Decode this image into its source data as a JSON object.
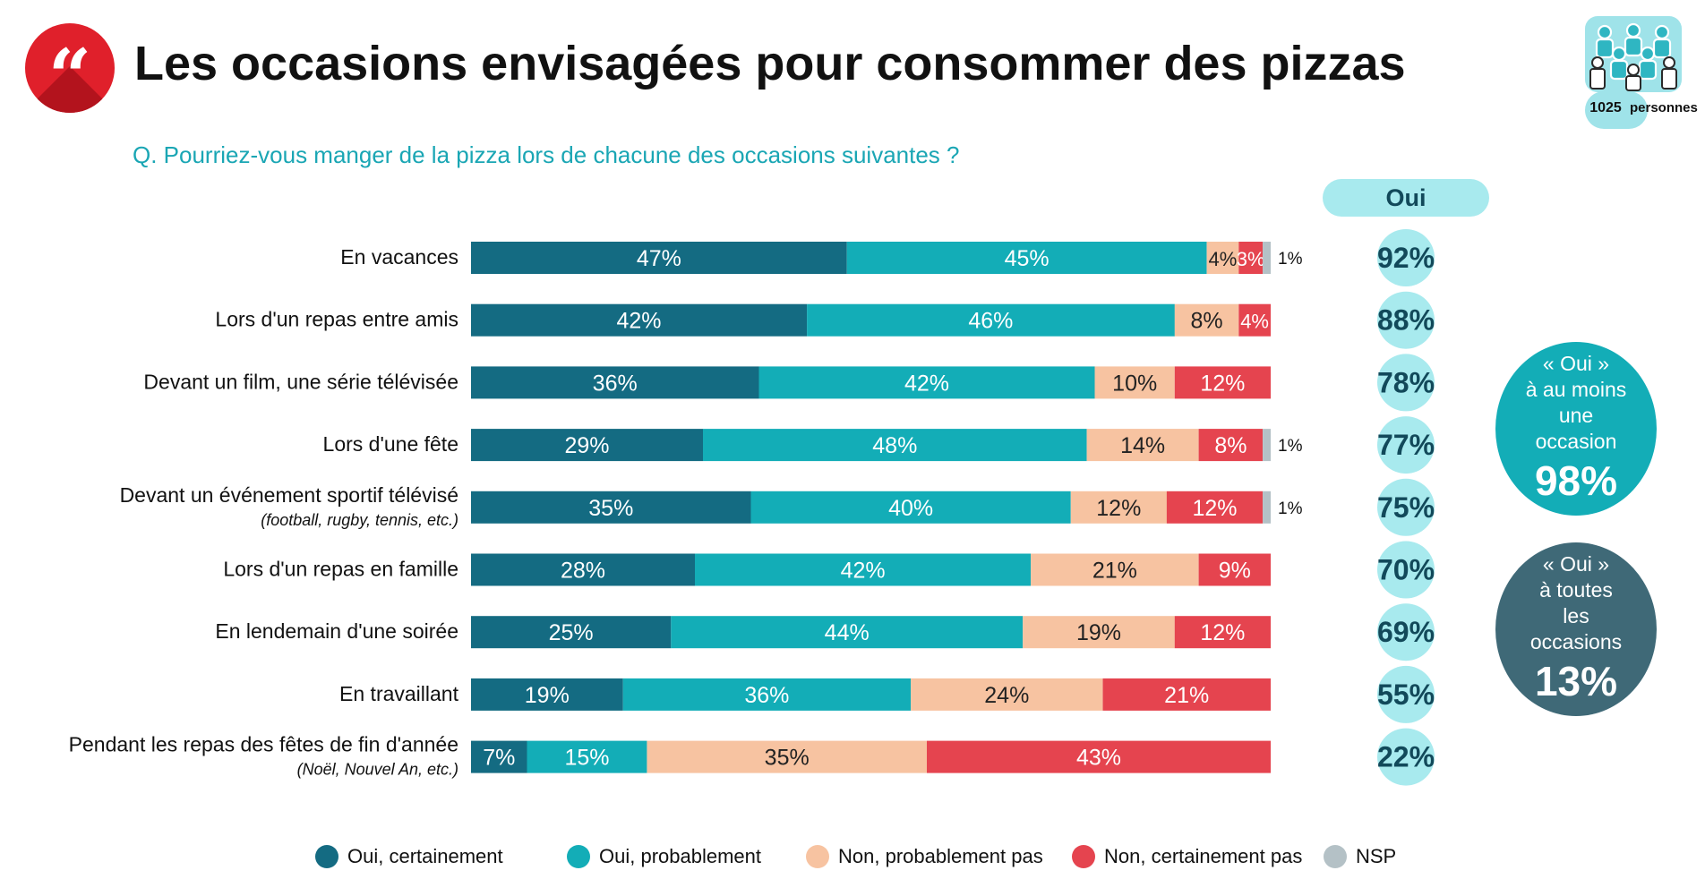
{
  "header": {
    "title": "Les occasions envisagées pour consommer des pizzas",
    "question": "Q. Pourriez-vous manger de la pizza lors de chacune des occasions suivantes ?",
    "sample_size": "1025",
    "sample_label": "personnes",
    "quote_glyph": "“"
  },
  "oui_header": "Oui",
  "summary": {
    "at_least_one": {
      "line1": "« Oui »",
      "line2": "à au moins",
      "line3": "une",
      "line4": "occasion",
      "value": "98%"
    },
    "all": {
      "line1": "« Oui »",
      "line2": "à toutes",
      "line3": "les",
      "line4": "occasions",
      "value": "13%"
    }
  },
  "colors": {
    "oui_certainement": "#146b82",
    "oui_probablement": "#13adb7",
    "non_probablement_pas": "#f7c3a1",
    "non_certainement_pas": "#e5444f",
    "nsp": "#b4c1c6",
    "oui_circle": "#a8eaee",
    "oui_text": "#12495a"
  },
  "chart_data": {
    "type": "bar",
    "orientation": "horizontal",
    "stacked": true,
    "categories": [
      "En vacances",
      "Lors d'un repas entre amis",
      "Devant un film, une série télévisée",
      "Lors d'une fête",
      "Devant un événement sportif télévisé",
      "Lors d'un repas en famille",
      "En lendemain d'une soirée",
      "En travaillant",
      "Pendant les repas des fêtes de fin d'année"
    ],
    "category_sublabels": [
      "",
      "",
      "",
      "",
      "(football, rugby, tennis, etc.)",
      "",
      "",
      "",
      "(Noël, Nouvel An, etc.)"
    ],
    "series": [
      {
        "name": "Oui, certainement",
        "values": [
          47,
          42,
          36,
          29,
          35,
          28,
          25,
          19,
          7
        ]
      },
      {
        "name": "Oui, probablement",
        "values": [
          45,
          46,
          42,
          48,
          40,
          42,
          44,
          36,
          15
        ]
      },
      {
        "name": "Non, probablement pas",
        "values": [
          4,
          8,
          10,
          14,
          12,
          21,
          19,
          24,
          35
        ]
      },
      {
        "name": "Non, certainement pas",
        "values": [
          3,
          4,
          12,
          8,
          12,
          9,
          12,
          21,
          43
        ]
      },
      {
        "name": "NSP",
        "values": [
          1,
          0,
          0,
          1,
          1,
          0,
          0,
          0,
          0
        ]
      }
    ],
    "oui_totals": [
      92,
      88,
      78,
      77,
      75,
      70,
      69,
      55,
      22
    ],
    "value_format": "percent",
    "legend_position": "bottom"
  }
}
